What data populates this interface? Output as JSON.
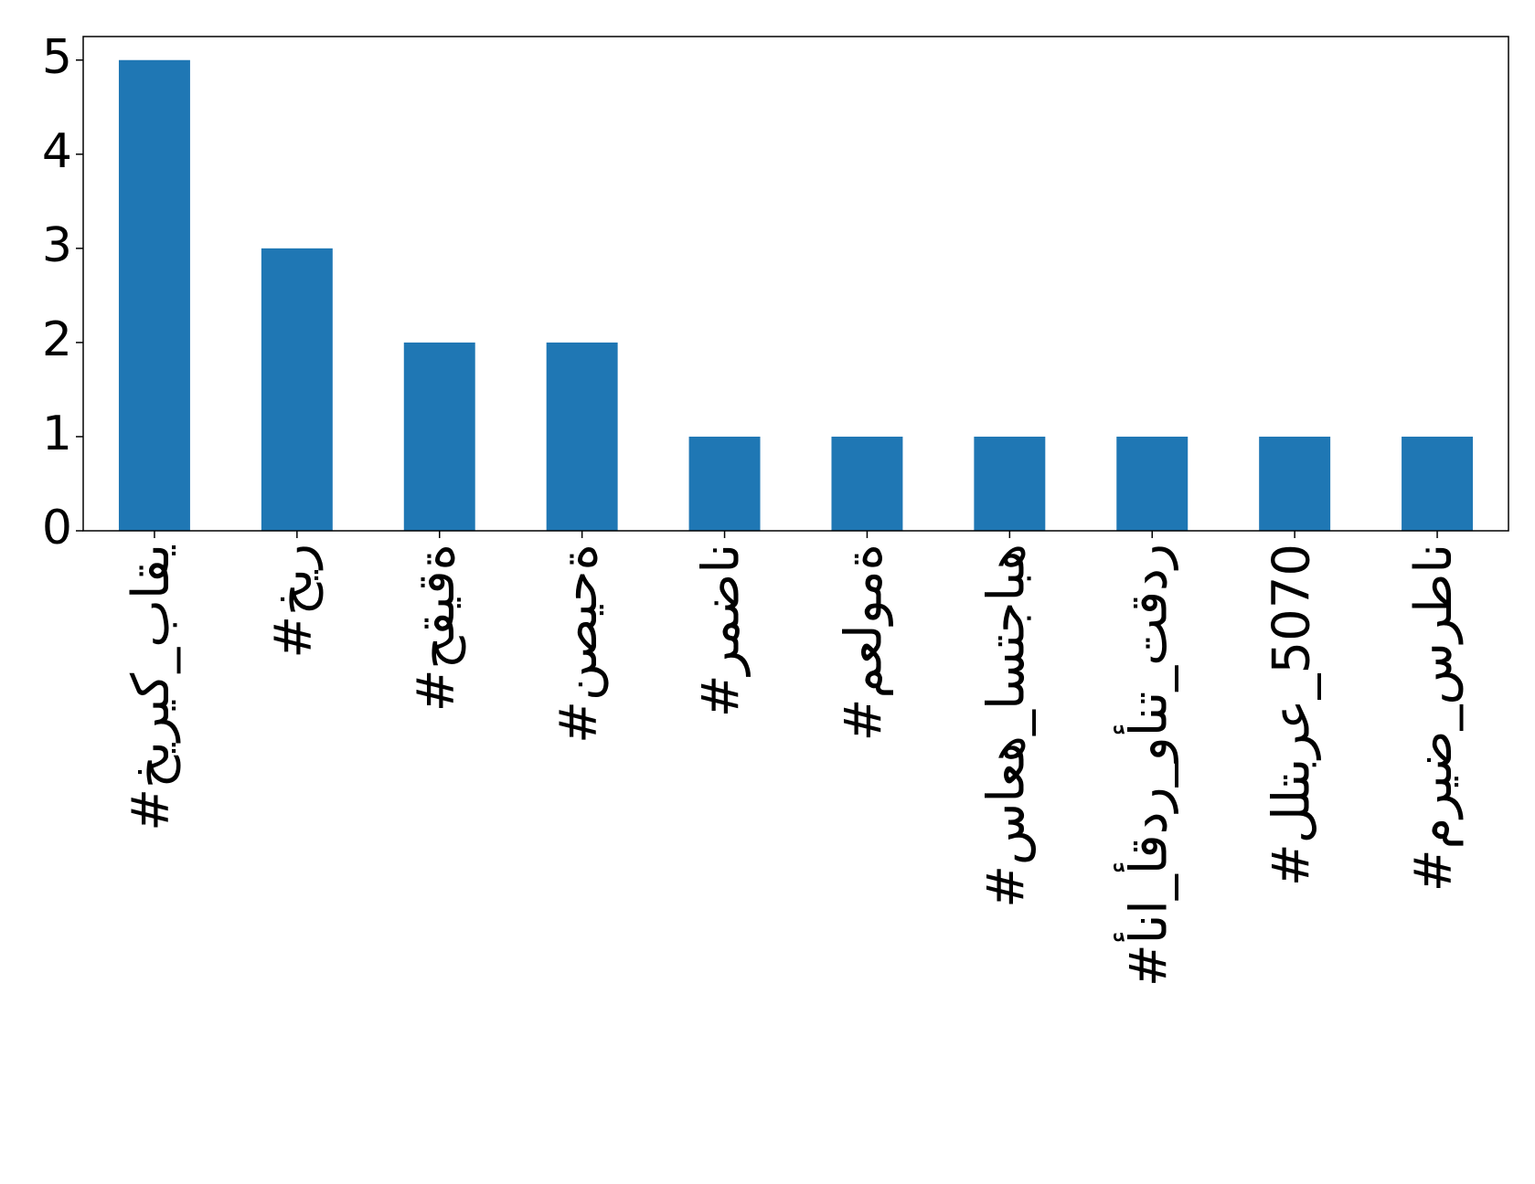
{
  "chart_data": {
    "type": "bar",
    "categories": [
      "#خيريك_باقي",
      "#خير",
      "#حقيقة",
      "#نصيحة",
      "#رمضان",
      "#معلومة",
      "#ساعه_استجابه",
      "#أنا_أقدر_وأنت_تقدر",
      "#للتبرع_5070",
      "#مريض_سرطان"
    ],
    "values": [
      5,
      3,
      2,
      2,
      1,
      1,
      1,
      1,
      1,
      1
    ],
    "color": "#1f77b4",
    "ylim": [
      0,
      5.25
    ],
    "yticks": [
      0,
      1,
      2,
      3,
      4,
      5
    ],
    "grid": false
  }
}
